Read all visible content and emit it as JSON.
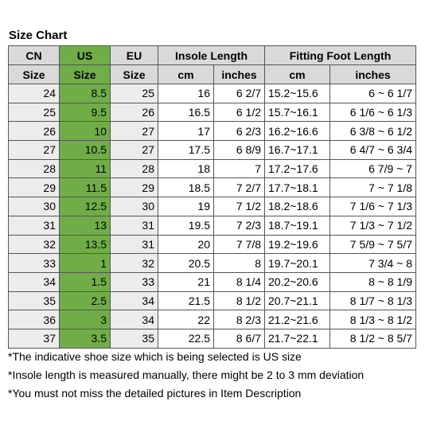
{
  "title": "Size Chart",
  "table": {
    "header_top": [
      "CN",
      "US",
      "EU",
      "Insole Length",
      "Fitting Foot Length"
    ],
    "header_bottom": [
      "Size",
      "Size",
      "Size",
      "cm",
      "inches",
      "cm",
      "inches"
    ],
    "rows": [
      [
        24,
        8.5,
        25,
        16,
        "6 2/7",
        "15.2~15.6",
        "6 ~ 6 1/7"
      ],
      [
        25,
        9.5,
        26,
        16.5,
        "6 1/2",
        "15.7~16.1",
        "6 1/6 ~ 6 1/3"
      ],
      [
        26,
        10,
        27,
        17,
        "6 2/3",
        "16.2~16.6",
        "6 3/8 ~ 6 1/2"
      ],
      [
        27,
        10.5,
        27,
        17.5,
        "6 8/9",
        "16.7~17.1",
        "6 4/7 ~ 6 3/4"
      ],
      [
        28,
        11,
        28,
        18,
        7,
        "17.2~17.6",
        "6 7/9 ~ 7"
      ],
      [
        29,
        11.5,
        29,
        18.5,
        "7 2/7",
        "17.7~18.1",
        "7 ~ 7 1/8"
      ],
      [
        30,
        12.5,
        30,
        19,
        "7 1/2",
        "18.2~18.6",
        "7 1/6 ~ 7 1/3"
      ],
      [
        31,
        13,
        31,
        19.5,
        "7 2/3",
        "18.7~19.1",
        "7 1/3 ~ 7 1/2"
      ],
      [
        32,
        13.5,
        31,
        20,
        "7 7/8",
        "19.2~19.6",
        "7 5/9 ~ 7 5/7"
      ],
      [
        33,
        1,
        32,
        20.5,
        8,
        "19.7~20.1",
        "7 3/4 ~ 8"
      ],
      [
        34,
        1.5,
        33,
        21,
        "8 1/4",
        "20.2~20.6",
        "8 ~ 8 1/9"
      ],
      [
        35,
        2.5,
        34,
        21.5,
        "8 1/2",
        "20.7~21.1",
        "8 1/7 ~ 8 1/3"
      ],
      [
        36,
        3,
        34,
        22,
        "8 2/3",
        "21.2~21.6",
        "8 1/3 ~ 8 1/2"
      ],
      [
        37,
        3.5,
        35,
        22.5,
        "8 6/7",
        "21.7~22.1",
        "8 1/2 ~ 8 5/7"
      ]
    ]
  },
  "notes": [
    "*The indicative shoe size which is being selected is US size",
    "*Insole length is measured manually, there might be 2 to 3 mm deviation",
    "*You must not miss the detailed pictures in Item Description"
  ]
}
